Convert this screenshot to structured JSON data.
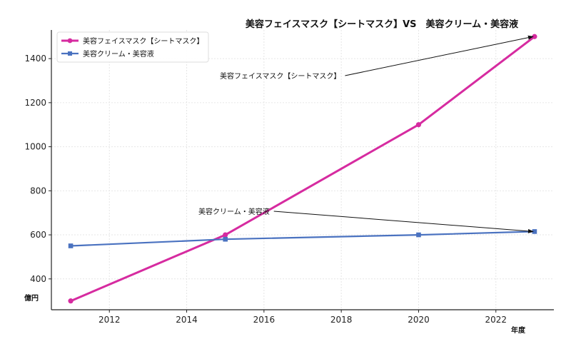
{
  "chart_data": {
    "type": "line",
    "title": "美容フェイスマスク【シートマスク】VS　美容クリーム・美容液",
    "xlabel": "年度",
    "ylabel": "億円",
    "xlim": [
      2010.5,
      2023.5
    ],
    "ylim": [
      260,
      1530
    ],
    "xticks": [
      2012,
      2014,
      2016,
      2018,
      2020,
      2022
    ],
    "yticks": [
      400,
      600,
      800,
      1000,
      1200,
      1400
    ],
    "grid": true,
    "legend_position": "top-left",
    "series": [
      {
        "name": "美容フェイスマスク【シートマスク】",
        "color": "#d62ba0",
        "marker": "circle",
        "x": [
          2011,
          2015,
          2020,
          2023
        ],
        "y": [
          300,
          600,
          1100,
          1500
        ]
      },
      {
        "name": "美容クリーム・美容液",
        "color": "#4a72c0",
        "marker": "square",
        "x": [
          2011,
          2015,
          2020,
          2023
        ],
        "y": [
          550,
          580,
          600,
          615
        ]
      }
    ],
    "annotations": [
      {
        "text": "美容フェイスマスク【シートマスク】",
        "series": 0,
        "x": 2023,
        "y": 1500
      },
      {
        "text": "美容クリーム・美容液",
        "series": 1,
        "x": 2023,
        "y": 615
      }
    ]
  }
}
